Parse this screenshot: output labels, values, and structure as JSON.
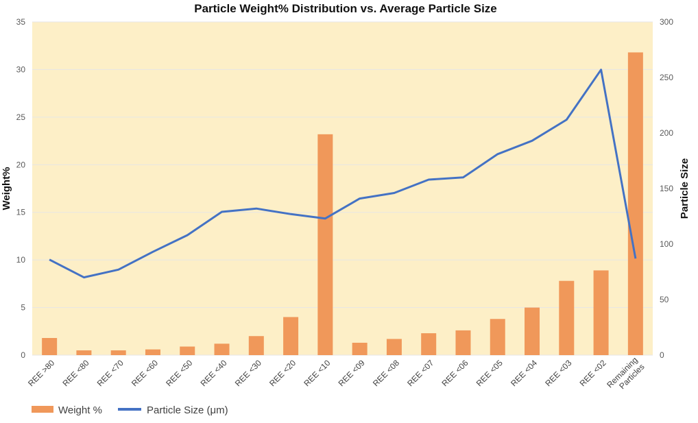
{
  "chart_data": {
    "type": "bar",
    "title": "Particle Weight% Distribution vs. Average Particle Size",
    "ylabel": "Weight%",
    "y2label": "Particle Size",
    "categories": [
      "REE >80",
      "REE <80",
      "REE <70",
      "REE <60",
      "REE <50",
      "REE <40",
      "REE <30",
      "REE <20",
      "REE <10",
      "REE <09",
      "REE <08",
      "REE <07",
      "REE <06",
      "REE <05",
      "REE <04",
      "REE <03",
      "REE <02",
      "Remaining\nParticles"
    ],
    "ylim": [
      0,
      35
    ],
    "y2lim": [
      0,
      300
    ],
    "yticks": [
      0,
      5,
      10,
      15,
      20,
      25,
      30,
      35
    ],
    "y2ticks": [
      0,
      50,
      100,
      150,
      200,
      250,
      300
    ],
    "grid": true,
    "legend_position": "bottom-left",
    "series": [
      {
        "name": "Weight %",
        "kind": "bar",
        "axis": "left",
        "color": "#F0985A",
        "values": [
          1.8,
          0.5,
          0.5,
          0.6,
          0.9,
          1.2,
          2.0,
          4.0,
          23.2,
          1.3,
          1.7,
          2.3,
          2.6,
          3.8,
          5.0,
          7.8,
          8.9,
          31.8
        ]
      },
      {
        "name": "Particle Size (μm)",
        "kind": "line",
        "axis": "right",
        "color": "#4472C4",
        "values": [
          86,
          70,
          77,
          93,
          108,
          129,
          132,
          127,
          123,
          141,
          146,
          158,
          160,
          181,
          193,
          212,
          257,
          87
        ]
      }
    ],
    "plot_background": "#FDEFC7",
    "gridline_color": "#E6E6E6"
  }
}
